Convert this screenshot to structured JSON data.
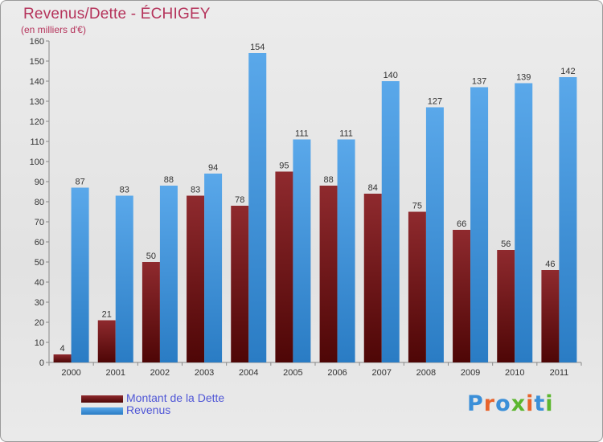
{
  "title": "Revenus/Dette - ÉCHIGEY",
  "subtitle": "(en milliers d'€)",
  "logo_text": "Proxiti",
  "colors": {
    "dette": "#6e1010",
    "revenus": "#3f95dd",
    "title": "#b5335b",
    "legend_text": "#4f56d6",
    "logo": [
      "#3b8fd8",
      "#e8632b",
      "#3b8fd8",
      "#5bb62e",
      "#e8632b",
      "#3b8fd8",
      "#5bb62e"
    ]
  },
  "chart_data": {
    "type": "bar",
    "title": "Revenus/Dette - ÉCHIGEY",
    "subtitle": "(en milliers d'€)",
    "xlabel": "",
    "ylabel": "",
    "ylim": [
      0,
      160
    ],
    "ytick_step": 10,
    "grid": false,
    "categories": [
      "2000",
      "2001",
      "2002",
      "2003",
      "2004",
      "2005",
      "2006",
      "2007",
      "2008",
      "2009",
      "2010",
      "2011"
    ],
    "series": [
      {
        "name": "Montant de la Dette",
        "values": [
          4,
          21,
          50,
          83,
          78,
          95,
          88,
          84,
          75,
          66,
          56,
          46
        ]
      },
      {
        "name": "Revenus",
        "values": [
          87,
          83,
          88,
          94,
          154,
          111,
          111,
          140,
          127,
          137,
          139,
          142
        ]
      }
    ],
    "legend_position": "bottom-left"
  }
}
